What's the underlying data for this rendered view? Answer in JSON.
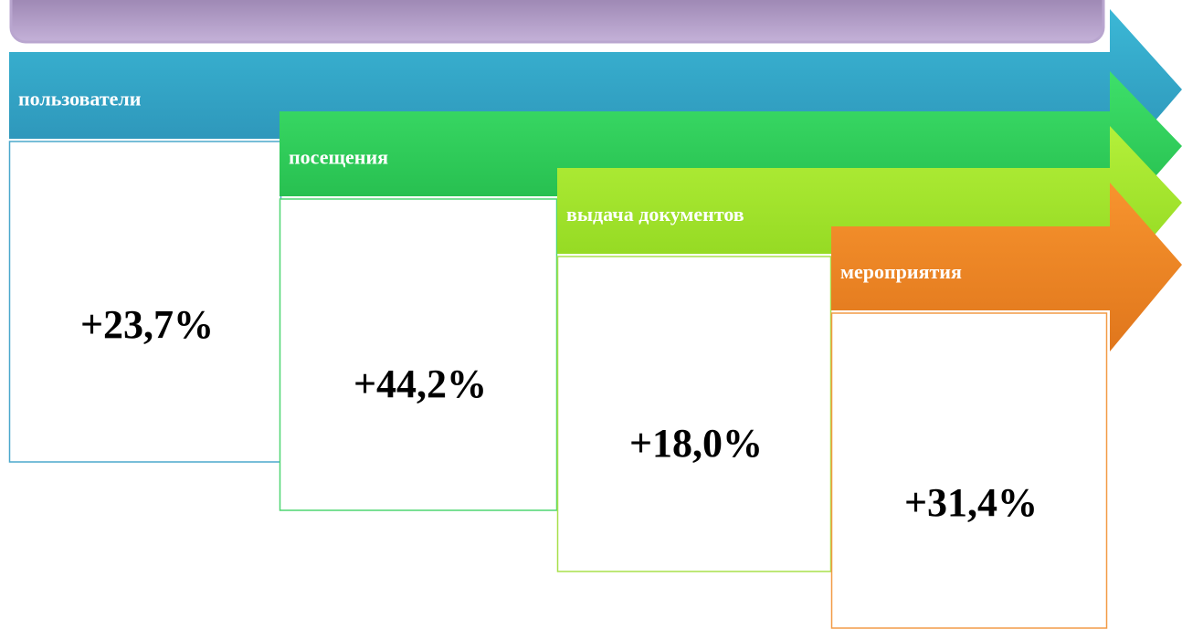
{
  "steps": [
    {
      "label": "пользователи",
      "value": "+23,7%"
    },
    {
      "label": "посещения",
      "value": "+44,2%"
    },
    {
      "label": "выдача документов",
      "value": "+18,0%"
    },
    {
      "label": "мероприятия",
      "value": "+31,4%"
    }
  ]
}
